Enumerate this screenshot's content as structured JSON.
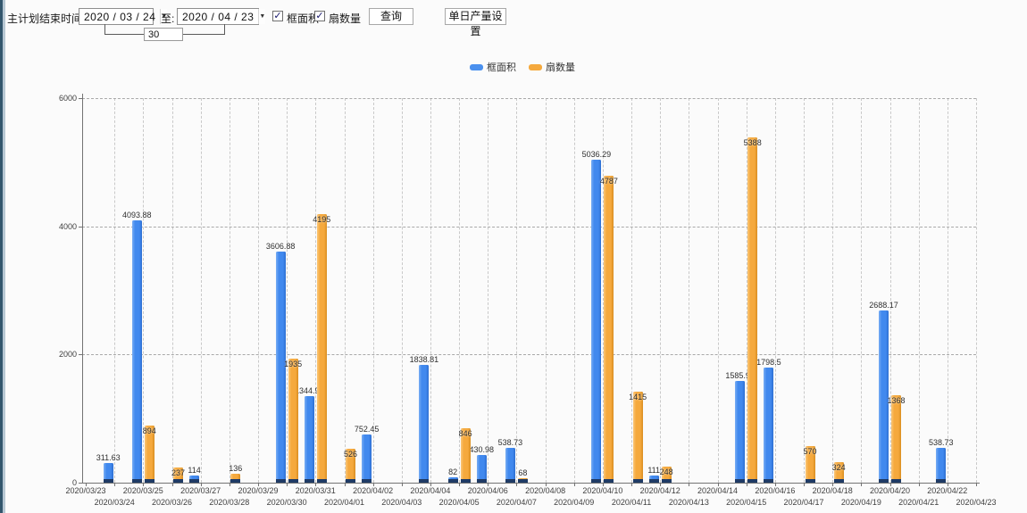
{
  "toolbar": {
    "label_start": "主计划结束时间:",
    "start_date": "2020 / 03 / 24",
    "label_to": "至:",
    "end_date": "2020 / 04 / 23",
    "span_days": "30",
    "check_glyph": "✓",
    "dropdown_glyph": "▼",
    "checkboxes": [
      {
        "label": "框面积",
        "checked": true
      },
      {
        "label": "扇数量",
        "checked": true
      }
    ],
    "query_button": "查询",
    "daily_output_button": "单日产量设置"
  },
  "legend": [
    {
      "label": "框面积",
      "color": "#4a90ee"
    },
    {
      "label": "扇数量",
      "color": "#f5a93d"
    }
  ],
  "chart_data": {
    "type": "bar",
    "title": "",
    "xlabel": "",
    "ylabel": "",
    "ylim": [
      0,
      6000
    ],
    "yticks": [
      0,
      2000,
      4000,
      6000
    ],
    "grid": true,
    "legend_position": "top-center",
    "categories": [
      "2020/03/23",
      "2020/03/24",
      "2020/03/25",
      "2020/03/26",
      "2020/03/27",
      "2020/03/28",
      "2020/03/29",
      "2020/03/30",
      "2020/03/31",
      "2020/04/01",
      "2020/04/02",
      "2020/04/03",
      "2020/04/04",
      "2020/04/05",
      "2020/04/06",
      "2020/04/07",
      "2020/04/08",
      "2020/04/09",
      "2020/04/10",
      "2020/04/11",
      "2020/04/12",
      "2020/04/13",
      "2020/04/14",
      "2020/04/15",
      "2020/04/16",
      "2020/04/17",
      "2020/04/18",
      "2020/04/19",
      "2020/04/20",
      "2020/04/21",
      "2020/04/22",
      "2020/04/23"
    ],
    "series": [
      {
        "name": "框面积",
        "color": "#4189ee",
        "values": [
          null,
          311.63,
          4093.88,
          null,
          114,
          null,
          null,
          3606.88,
          1344.95,
          null,
          752.45,
          null,
          1838.81,
          82,
          430.98,
          538.73,
          null,
          null,
          5036.29,
          null,
          111,
          null,
          null,
          1585.96,
          1798.5,
          null,
          null,
          null,
          2688.17,
          null,
          538.73,
          null
        ]
      },
      {
        "name": "扇数量",
        "color": "#f5a93d",
        "values": [
          null,
          null,
          894,
          237,
          null,
          136,
          null,
          1935,
          4195,
          526,
          null,
          null,
          null,
          846,
          null,
          68,
          null,
          null,
          4787,
          1415,
          248,
          null,
          null,
          5388,
          null,
          570,
          324,
          null,
          1368,
          null,
          null,
          null
        ]
      }
    ]
  }
}
